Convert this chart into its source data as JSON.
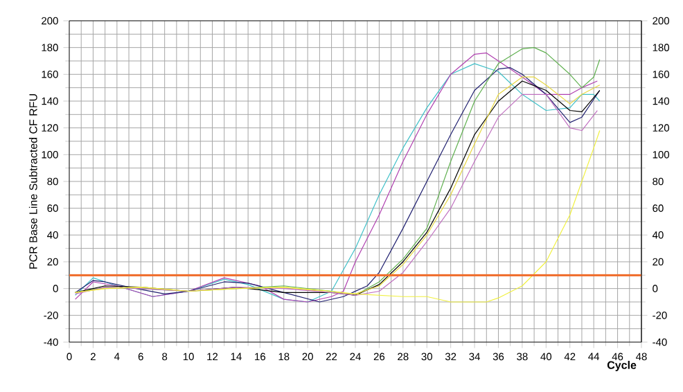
{
  "chart_data": {
    "type": "line",
    "xlabel": "Cycle",
    "ylabel": "PCR Base Line Subtracted CF RFU",
    "xlim": [
      0,
      48
    ],
    "ylim": [
      -40,
      200
    ],
    "y2lim": [
      -40,
      200
    ],
    "xticks": [
      0,
      2,
      4,
      6,
      8,
      10,
      12,
      14,
      16,
      18,
      20,
      22,
      24,
      26,
      28,
      30,
      32,
      34,
      36,
      38,
      40,
      42,
      44,
      46,
      48
    ],
    "yticks": [
      -40,
      -20,
      0,
      20,
      40,
      60,
      80,
      100,
      120,
      140,
      160,
      180,
      200
    ],
    "y2ticks": [
      -40,
      -20,
      0,
      20,
      40,
      60,
      80,
      100,
      120,
      140,
      160,
      180,
      200
    ],
    "grid": true,
    "line_style": "solid",
    "ref_lines": [
      {
        "axis": "y",
        "value": 10,
        "color": "#f07030"
      }
    ],
    "series": [
      {
        "color": "#40c0c8",
        "x": [
          0.5,
          2,
          4,
          7,
          10,
          13,
          15,
          18,
          20,
          22,
          24,
          26,
          28,
          30,
          32,
          34,
          36,
          38,
          40,
          42,
          43,
          44,
          44.5
        ],
        "values": [
          -5,
          8,
          2,
          -6,
          -2,
          7,
          3,
          -8,
          -10,
          -2,
          30,
          70,
          105,
          135,
          160,
          168,
          162,
          145,
          133,
          135,
          145,
          145,
          140
        ]
      },
      {
        "color": "#b040b0",
        "x": [
          0.5,
          2,
          4,
          7,
          10,
          13,
          16,
          18,
          20,
          22,
          23,
          24,
          26,
          28,
          30,
          32,
          34,
          35,
          36,
          38,
          40,
          42,
          43,
          44.3
        ],
        "values": [
          -8,
          5,
          2,
          -6,
          -2,
          8,
          2,
          -8,
          -10,
          -6,
          -2,
          20,
          55,
          95,
          130,
          160,
          175,
          176,
          170,
          158,
          145,
          145,
          150,
          155
        ]
      },
      {
        "color": "#202070",
        "x": [
          0.5,
          2,
          3,
          5,
          8,
          10,
          13,
          15,
          18,
          21,
          23,
          25,
          26,
          28,
          30,
          32,
          34,
          36,
          37,
          38,
          40,
          42,
          43,
          44.5
        ],
        "values": [
          -3,
          6,
          5,
          1,
          -4,
          -2,
          5,
          4,
          -3,
          -10,
          -6,
          2,
          12,
          45,
          80,
          115,
          148,
          164,
          165,
          160,
          145,
          124,
          128,
          148
        ]
      },
      {
        "color": "#60b050",
        "x": [
          0.5,
          3,
          6,
          10,
          14,
          18,
          22,
          24,
          26,
          28,
          30,
          32,
          34,
          36,
          38,
          39,
          40,
          42,
          43,
          44,
          44.5
        ],
        "values": [
          -3,
          1,
          0,
          -2,
          0,
          2,
          -2,
          -5,
          5,
          22,
          45,
          95,
          140,
          168,
          179,
          180,
          176,
          160,
          150,
          158,
          171
        ]
      },
      {
        "color": "#000000",
        "x": [
          0.5,
          3,
          6,
          10,
          14,
          18,
          22,
          24,
          26,
          28,
          30,
          32,
          34,
          36,
          38,
          40,
          42,
          43,
          44.5
        ],
        "values": [
          -3,
          2,
          1,
          -2,
          1,
          -3,
          -3,
          -5,
          3,
          20,
          42,
          75,
          115,
          140,
          155,
          148,
          133,
          132,
          148
        ]
      },
      {
        "color": "#e8d840",
        "x": [
          0.5,
          3,
          6,
          10,
          14,
          18,
          22,
          24,
          26,
          28,
          30,
          32,
          34,
          36,
          38,
          39,
          40,
          42,
          43,
          44.5
        ],
        "values": [
          -3,
          0,
          1,
          -2,
          0,
          1,
          -3,
          -4,
          2,
          18,
          40,
          70,
          108,
          145,
          158,
          158,
          152,
          138,
          145,
          152
        ]
      },
      {
        "color": "#c070c0",
        "x": [
          0.5,
          3,
          6,
          10,
          14,
          18,
          22,
          24,
          26,
          28,
          30,
          32,
          34,
          36,
          38,
          40,
          42,
          43,
          44.3
        ],
        "values": [
          -4,
          1,
          0,
          -2,
          1,
          0,
          -3,
          -5,
          -2,
          12,
          35,
          60,
          95,
          128,
          145,
          145,
          120,
          118,
          133
        ]
      },
      {
        "color": "#f0f040",
        "x": [
          0.5,
          3,
          6,
          10,
          14,
          18,
          22,
          24,
          28,
          30,
          32,
          34,
          35,
          36,
          38,
          40,
          42,
          44,
          44.5
        ],
        "values": [
          -3,
          0,
          1,
          -2,
          0,
          1,
          -2,
          -4,
          -6,
          -6,
          -10,
          -10,
          -10,
          -7,
          2,
          20,
          55,
          105,
          118
        ]
      }
    ]
  }
}
